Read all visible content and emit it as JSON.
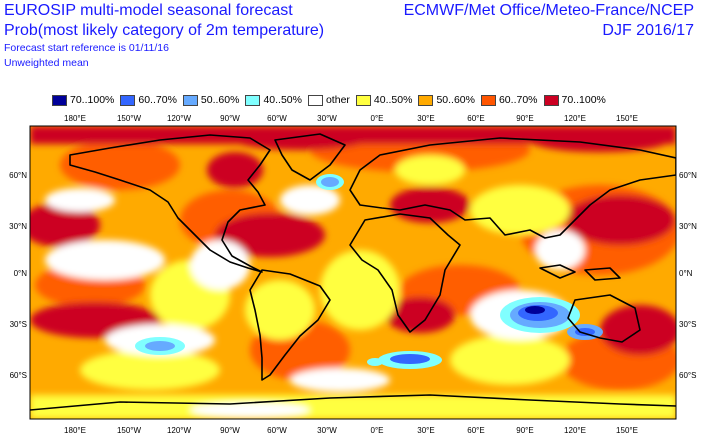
{
  "header": {
    "title_line1": "EUROSIP multi-model seasonal forecast",
    "title_line2": "Prob(most likely category of 2m temperature)",
    "start_ref": "Forecast start reference is 01/11/16",
    "mean_type": "Unweighted mean",
    "centres": "ECMWF/Met Office/Meteo-France/NCEP",
    "season": "DJF 2016/17"
  },
  "legend": [
    {
      "label": "70..100%",
      "color": "#000099"
    },
    {
      "label": "60..70%",
      "color": "#3366ff"
    },
    {
      "label": "50..60%",
      "color": "#66aaff"
    },
    {
      "label": "40..50%",
      "color": "#80ffff"
    },
    {
      "label": "other",
      "color": "#ffffff"
    },
    {
      "label": "40..50%",
      "color": "#ffff40"
    },
    {
      "label": "50..60%",
      "color": "#ffaa00"
    },
    {
      "label": "60..70%",
      "color": "#ff5500"
    },
    {
      "label": "70..100%",
      "color": "#cc0022"
    }
  ],
  "map": {
    "lon_labels": [
      "180°E",
      "150°W",
      "120°W",
      "90°W",
      "60°W",
      "30°W",
      "0°E",
      "30°E",
      "60°E",
      "90°E",
      "120°E",
      "150°E"
    ],
    "lat_labels": [
      "60°N",
      "30°N",
      "0°N",
      "30°S",
      "60°S"
    ]
  }
}
